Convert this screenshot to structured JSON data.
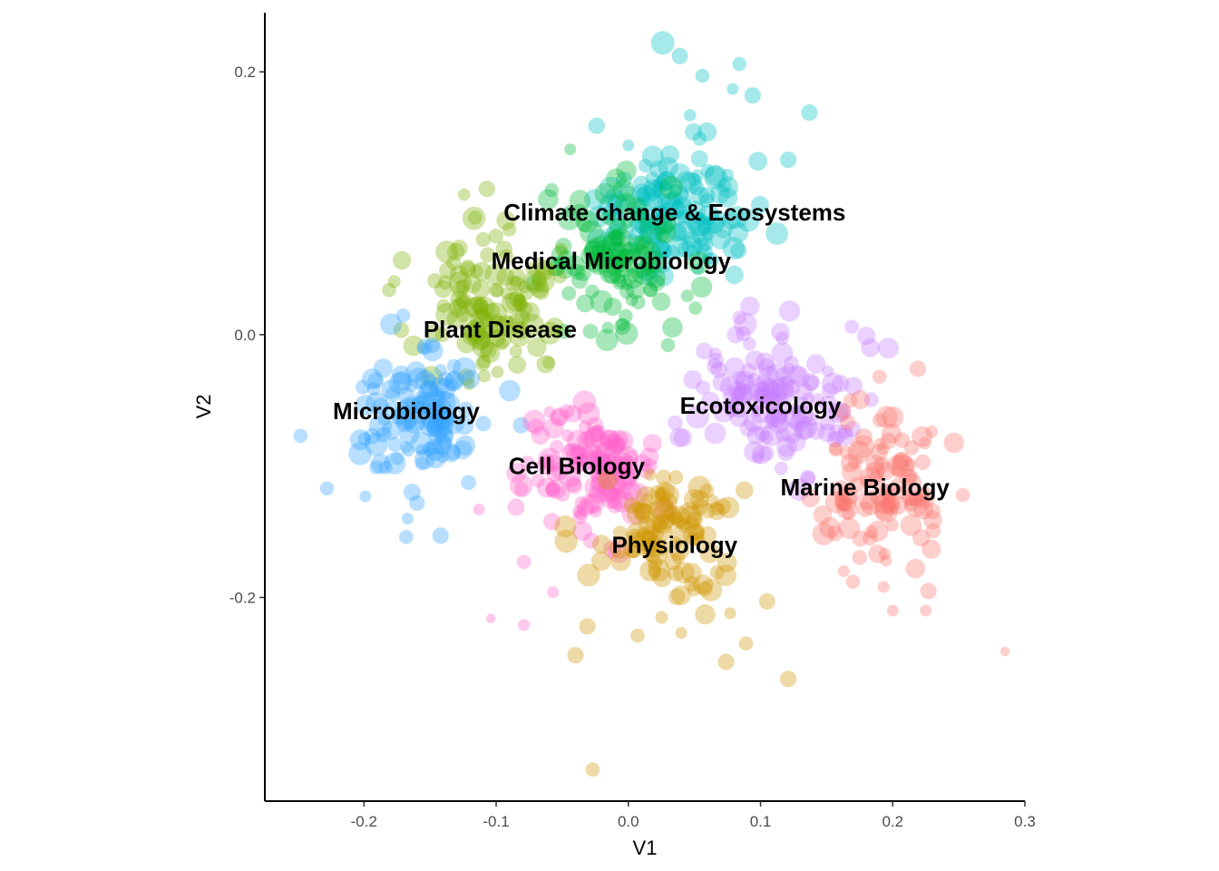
{
  "chart_data": {
    "type": "scatter",
    "xlabel": "V1",
    "ylabel": "V2",
    "xlim": [
      -0.275,
      0.3
    ],
    "ylim": [
      -0.355,
      0.245
    ],
    "x_ticks": [
      -0.2,
      -0.1,
      0.0,
      0.1,
      0.2,
      0.3
    ],
    "x_tick_labels": [
      "-0.2",
      "-0.1",
      "0.0",
      "0.1",
      "0.2",
      "0.3"
    ],
    "y_ticks": [
      -0.2,
      0.0,
      0.2
    ],
    "y_tick_labels": [
      "-0.2",
      "0.0",
      "0.2"
    ],
    "grid": false,
    "legend": "none",
    "point_opacity": 0.35,
    "series": [
      {
        "name": "Climate change & Ecosystems",
        "color": "#00BFC4",
        "label_pos": [
          0.035,
          0.093
        ],
        "center": [
          0.035,
          0.095
        ],
        "spread": [
          0.045,
          0.04
        ],
        "n": 140,
        "points": [
          [
            0.026,
            0.222,
            5
          ],
          [
            0.039,
            0.212,
            3.5
          ],
          [
            0.084,
            0.206,
            3
          ],
          [
            0.056,
            0.197,
            3
          ],
          [
            0.079,
            0.187,
            2.5
          ],
          [
            0.094,
            0.182,
            3.5
          ],
          [
            0.137,
            0.169,
            3.5
          ],
          [
            0.0,
            0.144,
            2.5
          ],
          [
            -0.024,
            0.159,
            3.5
          ],
          [
            0.054,
            0.149,
            3
          ],
          [
            0.121,
            0.133,
            3.5
          ],
          [
            0.098,
            0.132,
            4
          ]
        ]
      },
      {
        "name": "Medical Microbiology",
        "color": "#00BA38",
        "label_pos": [
          -0.013,
          0.056
        ],
        "center": [
          -0.01,
          0.06
        ],
        "spread": [
          0.04,
          0.04
        ],
        "n": 110,
        "points": [
          [
            -0.044,
            0.141,
            2.5
          ],
          [
            -0.058,
            0.11,
            3
          ],
          [
            -0.002,
            0.014,
            3
          ],
          [
            0.03,
            -0.008,
            3
          ]
        ]
      },
      {
        "name": "Plant Disease",
        "color": "#7CAE00",
        "label_pos": [
          -0.097,
          0.004
        ],
        "center": [
          -0.1,
          0.02
        ],
        "spread": [
          0.04,
          0.04
        ],
        "n": 120,
        "points": [
          [
            -0.107,
            0.111,
            3.5
          ],
          [
            -0.116,
            0.089,
            3
          ],
          [
            -0.09,
            0.08,
            3
          ],
          [
            -0.181,
            0.034,
            3
          ]
        ]
      },
      {
        "name": "Microbiology",
        "color": "#35A2FF",
        "label_pos": [
          -0.168,
          -0.058
        ],
        "center": [
          -0.16,
          -0.06
        ],
        "spread": [
          0.04,
          0.04
        ],
        "n": 120,
        "points": [
          [
            -0.248,
            -0.077,
            3
          ],
          [
            -0.228,
            -0.117,
            3
          ],
          [
            -0.199,
            -0.123,
            2.5
          ],
          [
            -0.167,
            -0.14,
            2.5
          ],
          [
            -0.142,
            -0.153,
            3.5
          ],
          [
            -0.168,
            -0.154,
            3
          ]
        ]
      },
      {
        "name": "Ecotoxicology",
        "color": "#C77CFF",
        "label_pos": [
          0.1,
          -0.054
        ],
        "center": [
          0.11,
          -0.05
        ],
        "spread": [
          0.045,
          0.04
        ],
        "n": 130,
        "points": [
          [
            0.122,
            0.018,
            4.5
          ],
          [
            0.084,
            0.013,
            3
          ],
          [
            0.169,
            0.006,
            3
          ],
          [
            0.183,
            -0.01,
            4
          ]
        ]
      },
      {
        "name": "Cell Biology",
        "color": "#FF61CC",
        "label_pos": [
          -0.039,
          -0.1
        ],
        "center": [
          -0.03,
          -0.1
        ],
        "spread": [
          0.04,
          0.04
        ],
        "n": 120,
        "points": [
          [
            -0.113,
            -0.133,
            2.5
          ],
          [
            -0.104,
            -0.216,
            2
          ],
          [
            -0.079,
            -0.221,
            2.5
          ],
          [
            -0.057,
            -0.196,
            2.5
          ],
          [
            -0.079,
            -0.173,
            3
          ]
        ]
      },
      {
        "name": "Physiology",
        "color": "#CD9600",
        "label_pos": [
          0.035,
          -0.16
        ],
        "center": [
          0.03,
          -0.15
        ],
        "spread": [
          0.045,
          0.04
        ],
        "n": 110,
        "points": [
          [
            -0.027,
            -0.331,
            3
          ],
          [
            -0.04,
            -0.244,
            3.5
          ],
          [
            -0.031,
            -0.222,
            3.5
          ],
          [
            0.007,
            -0.229,
            3
          ],
          [
            0.04,
            -0.227,
            2.5
          ],
          [
            0.074,
            -0.249,
            3.5
          ],
          [
            0.089,
            -0.235,
            3
          ],
          [
            0.121,
            -0.262,
            3.5
          ],
          [
            0.105,
            -0.203,
            3.5
          ],
          [
            0.077,
            -0.212,
            2.5
          ]
        ]
      },
      {
        "name": "Marine Biology",
        "color": "#F8766D",
        "label_pos": [
          0.179,
          -0.116
        ],
        "center": [
          0.19,
          -0.11
        ],
        "spread": [
          0.04,
          0.045
        ],
        "n": 100,
        "points": [
          [
            0.285,
            -0.241,
            2
          ],
          [
            0.227,
            -0.195,
            3.5
          ],
          [
            0.2,
            -0.21,
            2.5
          ],
          [
            0.225,
            -0.21,
            2.5
          ],
          [
            0.163,
            -0.18,
            2.5
          ],
          [
            0.17,
            -0.188,
            3
          ],
          [
            0.193,
            -0.192,
            2.5
          ],
          [
            0.253,
            -0.122,
            3
          ],
          [
            0.195,
            -0.172,
            2.5
          ],
          [
            0.219,
            -0.026,
            3.5
          ],
          [
            0.19,
            -0.032,
            3
          ]
        ]
      }
    ]
  }
}
